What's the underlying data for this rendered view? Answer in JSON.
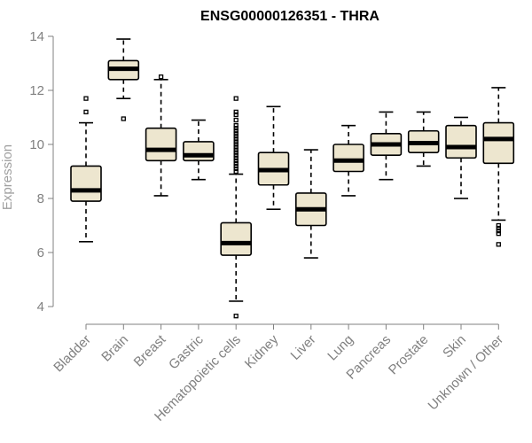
{
  "chart_data": {
    "type": "boxplot",
    "title": "ENSG00000126351 - THRA",
    "xlabel": "",
    "ylabel": "Expression",
    "ylim": [
      3.5,
      14.2
    ],
    "yticks": [
      4,
      6,
      8,
      10,
      12,
      14
    ],
    "grid": false,
    "legend": "none",
    "colors": {
      "box_fill": "#ede6cf",
      "box_stroke": "#000000",
      "median": "#000000",
      "axis": "#808080"
    },
    "categories": [
      "Bladder",
      "Brain",
      "Breast",
      "Gastric",
      "Hematopoietic cells",
      "Kidney",
      "Liver",
      "Lung",
      "Pancreas",
      "Prostate",
      "Skin",
      "Unknown / Other"
    ],
    "boxes": [
      {
        "category": "Bladder",
        "whisker_low": 6.4,
        "q1": 7.9,
        "median": 8.3,
        "q3": 9.2,
        "whisker_high": 10.8,
        "outliers": [
          11.2,
          11.7
        ]
      },
      {
        "category": "Brain",
        "whisker_low": 11.7,
        "q1": 12.4,
        "median": 12.8,
        "q3": 13.1,
        "whisker_high": 13.9,
        "outliers": [
          10.95
        ]
      },
      {
        "category": "Breast",
        "whisker_low": 8.1,
        "q1": 9.4,
        "median": 9.8,
        "q3": 10.6,
        "whisker_high": 12.4,
        "outliers": [
          12.5
        ]
      },
      {
        "category": "Gastric",
        "whisker_low": 8.7,
        "q1": 9.4,
        "median": 9.6,
        "q3": 10.1,
        "whisker_high": 10.9,
        "outliers": []
      },
      {
        "category": "Hematopoietic cells",
        "whisker_low": 4.2,
        "q1": 5.9,
        "median": 6.35,
        "q3": 7.1,
        "whisker_high": 8.9,
        "outliers": [
          3.65,
          9.0,
          9.1,
          9.2,
          9.3,
          9.4,
          9.5,
          9.6,
          9.7,
          9.8,
          9.9,
          10.0,
          10.1,
          10.2,
          10.3,
          10.4,
          10.5,
          10.6,
          10.7,
          10.9,
          11.1,
          11.2,
          11.7
        ]
      },
      {
        "category": "Kidney",
        "whisker_low": 7.6,
        "q1": 8.5,
        "median": 9.05,
        "q3": 9.7,
        "whisker_high": 11.4,
        "outliers": []
      },
      {
        "category": "Liver",
        "whisker_low": 5.8,
        "q1": 7.0,
        "median": 7.6,
        "q3": 8.2,
        "whisker_high": 9.8,
        "outliers": []
      },
      {
        "category": "Lung",
        "whisker_low": 8.1,
        "q1": 9.0,
        "median": 9.4,
        "q3": 10.0,
        "whisker_high": 10.7,
        "outliers": []
      },
      {
        "category": "Pancreas",
        "whisker_low": 8.7,
        "q1": 9.6,
        "median": 10.0,
        "q3": 10.4,
        "whisker_high": 11.2,
        "outliers": []
      },
      {
        "category": "Prostate",
        "whisker_low": 9.2,
        "q1": 9.7,
        "median": 10.05,
        "q3": 10.5,
        "whisker_high": 11.2,
        "outliers": []
      },
      {
        "category": "Skin",
        "whisker_low": 8.0,
        "q1": 9.5,
        "median": 9.9,
        "q3": 10.7,
        "whisker_high": 11.0,
        "outliers": []
      },
      {
        "category": "Unknown / Other",
        "whisker_low": 7.2,
        "q1": 9.3,
        "median": 10.2,
        "q3": 10.8,
        "whisker_high": 12.1,
        "outliers": [
          6.3,
          6.7,
          6.8,
          6.9,
          7.0
        ]
      }
    ]
  }
}
